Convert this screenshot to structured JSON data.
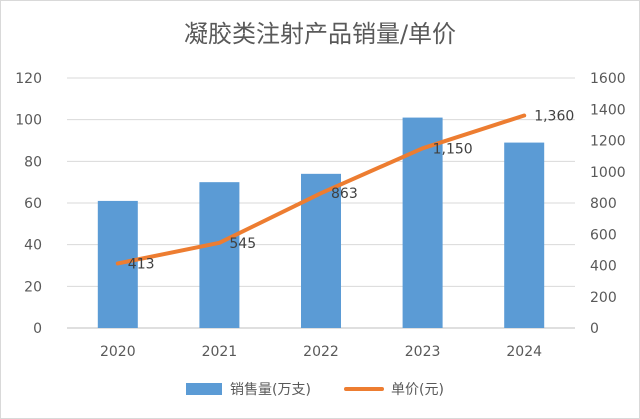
{
  "chart_data": {
    "type": "bar",
    "title": "凝胶类注射产品销量/单价",
    "categories": [
      "2020",
      "2021",
      "2022",
      "2023",
      "2024"
    ],
    "series": [
      {
        "name": "销售量(万支)",
        "type": "bar",
        "axis": "left",
        "color": "#5b9bd5",
        "values": [
          61,
          70,
          74,
          101,
          89
        ]
      },
      {
        "name": "单价(元)",
        "type": "line",
        "axis": "right",
        "color": "#ed7d31",
        "values": [
          413,
          545,
          863,
          1150,
          1360
        ],
        "data_labels": [
          "413",
          "545",
          "863",
          "1,150",
          "1,360"
        ]
      }
    ],
    "y_left": {
      "min": 0,
      "max": 120,
      "step": 20,
      "ticks": [
        "0",
        "20",
        "40",
        "60",
        "80",
        "100",
        "120"
      ]
    },
    "y_right": {
      "min": 0,
      "max": 1600,
      "step": 200,
      "ticks": [
        "0",
        "200",
        "400",
        "600",
        "800",
        "1000",
        "1200",
        "1400",
        "1600"
      ]
    },
    "grid": true,
    "legend_position": "bottom"
  }
}
